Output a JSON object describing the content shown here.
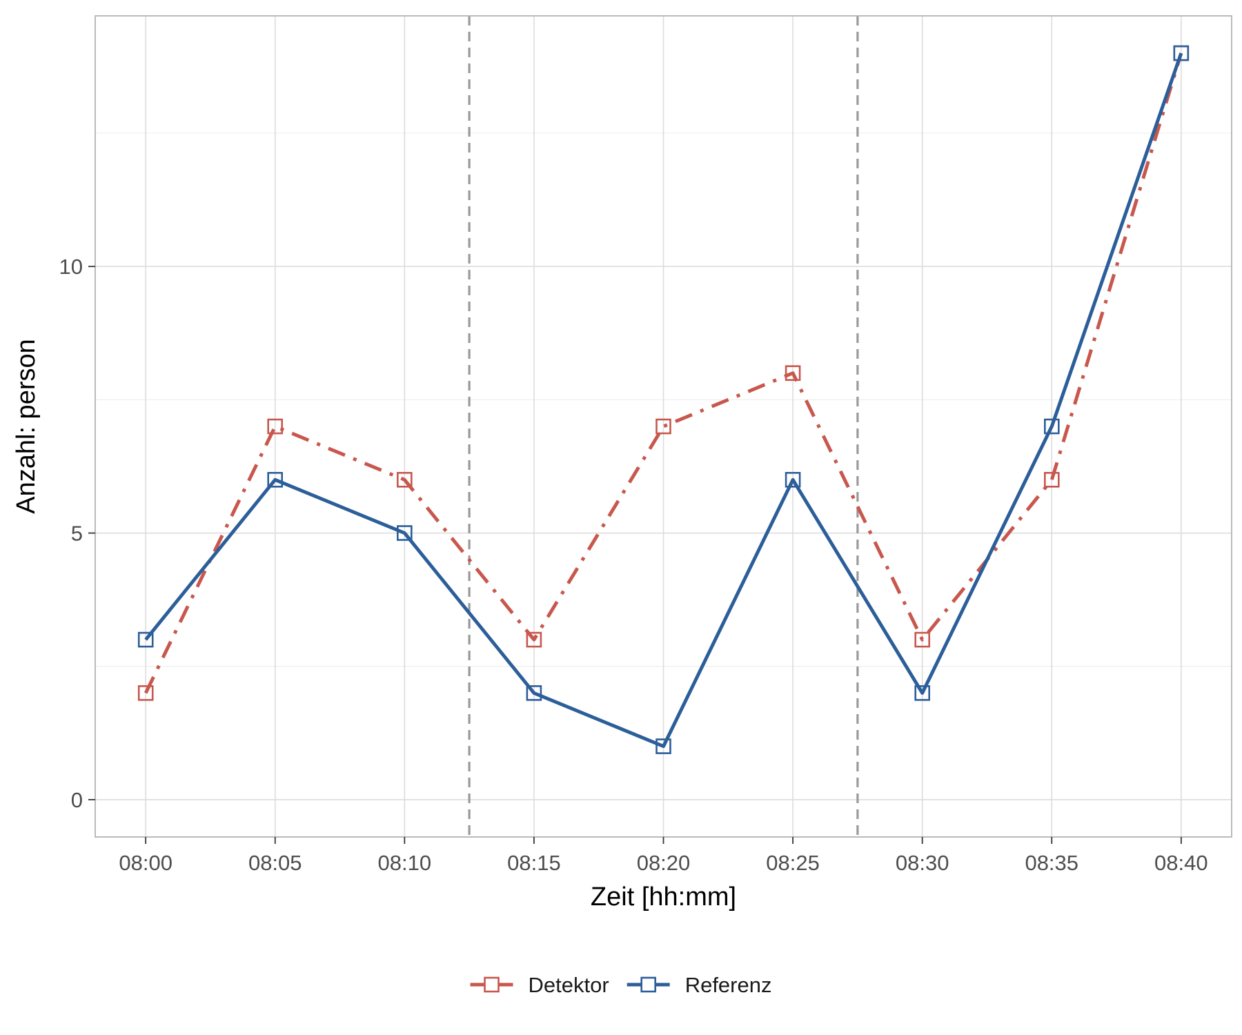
{
  "chart_data": {
    "type": "line",
    "x": [
      "08:00",
      "08:05",
      "08:10",
      "08:15",
      "08:20",
      "08:25",
      "08:30",
      "08:35",
      "08:40"
    ],
    "series": [
      {
        "name": "Detektor",
        "values": [
          2,
          7,
          6,
          3,
          7,
          8,
          3,
          6,
          14
        ],
        "color": "#c8574d",
        "line_style": "dashdot",
        "marker": "open-square"
      },
      {
        "name": "Referenz",
        "values": [
          3,
          6,
          5,
          2,
          1,
          6,
          2,
          7,
          14
        ],
        "color": "#2c5e99",
        "line_style": "solid",
        "marker": "open-square"
      }
    ],
    "vlines": [
      {
        "x": "08:12:30",
        "style": "dashed",
        "color": "#999999"
      },
      {
        "x": "08:27:30",
        "style": "dashed",
        "color": "#999999"
      }
    ],
    "xlabel": "Zeit [hh:mm]",
    "ylabel": "Anzahl: person",
    "xticks": [
      "08:00",
      "08:05",
      "08:10",
      "08:15",
      "08:20",
      "08:25",
      "08:30",
      "08:35",
      "08:40"
    ],
    "yticks": [
      0,
      5,
      10
    ],
    "xlim": [
      "07:58:03",
      "08:41:57"
    ],
    "ylim": [
      -0.7,
      14.7
    ],
    "grid": true,
    "legend": "bottom"
  }
}
